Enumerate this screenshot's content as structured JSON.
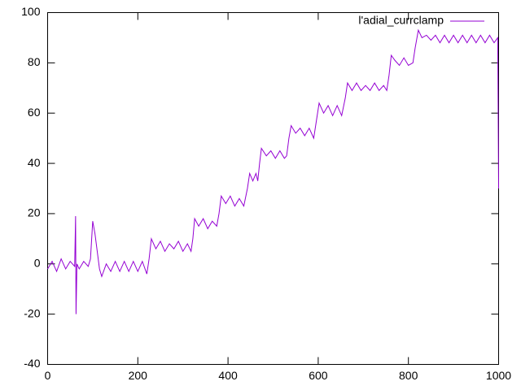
{
  "chart_data": {
    "type": "line",
    "x": [
      0,
      10,
      20,
      30,
      40,
      50,
      60,
      62,
      63,
      65,
      70,
      80,
      90,
      95,
      100,
      105,
      110,
      115,
      120,
      130,
      140,
      150,
      160,
      170,
      180,
      190,
      200,
      210,
      220,
      225,
      230,
      240,
      250,
      260,
      270,
      280,
      290,
      300,
      310,
      318,
      322,
      326,
      335,
      345,
      355,
      365,
      375,
      380,
      385,
      395,
      405,
      415,
      425,
      435,
      443,
      448,
      455,
      462,
      466,
      470,
      474,
      485,
      495,
      505,
      515,
      525,
      530,
      535,
      540,
      550,
      560,
      570,
      580,
      590,
      596,
      602,
      612,
      622,
      632,
      642,
      652,
      660,
      665,
      675,
      685,
      695,
      705,
      715,
      725,
      735,
      745,
      752,
      757,
      762,
      770,
      780,
      790,
      800,
      810,
      815,
      822,
      830,
      840,
      850,
      860,
      870,
      880,
      890,
      900,
      910,
      920,
      930,
      940,
      950,
      960,
      970,
      980,
      990,
      998,
      1000
    ],
    "series": [
      {
        "name": "l'adial_currclamp",
        "color": "#9400d3",
        "values": [
          -2,
          1,
          -3,
          2,
          -2,
          1,
          -1,
          19,
          -20,
          0,
          -2,
          1,
          -1,
          2,
          17,
          12,
          5,
          -2,
          -5,
          0,
          -3,
          1,
          -3,
          1,
          -3,
          1,
          -3,
          1,
          -4,
          2,
          10,
          6,
          9,
          5,
          8,
          6,
          9,
          5,
          8,
          5,
          10,
          18,
          15,
          18,
          14,
          17,
          15,
          20,
          27,
          24,
          27,
          23,
          26,
          23,
          30,
          36,
          33,
          36,
          33,
          40,
          46,
          43,
          45,
          42,
          45,
          42,
          43,
          50,
          55,
          52,
          54,
          51,
          54,
          50,
          57,
          64,
          60,
          63,
          59,
          63,
          59,
          66,
          72,
          69,
          72,
          69,
          71,
          69,
          72,
          69,
          71,
          69,
          75,
          83,
          81,
          79,
          82,
          79,
          80,
          86,
          93,
          90,
          91,
          89,
          91,
          88,
          91,
          88,
          91,
          88,
          91,
          88,
          91,
          88,
          91,
          88,
          91,
          88,
          90,
          30
        ]
      }
    ],
    "xlim": [
      0,
      1000
    ],
    "xticks": [
      0,
      200,
      400,
      600,
      800,
      1000
    ],
    "ylim": [
      -40,
      100
    ],
    "yticks": [
      -40,
      -20,
      0,
      20,
      40,
      60,
      80,
      100
    ],
    "grid": false,
    "legend": "top-right"
  }
}
